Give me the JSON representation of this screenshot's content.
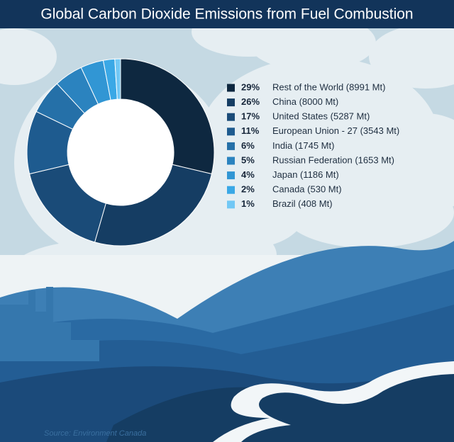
{
  "chart_data": {
    "type": "donut",
    "title": "Global Carbon Dioxide Emissions from Fuel Combustion",
    "categories": [
      "Rest of the World (8991 Mt)",
      "China (8000 Mt)",
      "United States (5287 Mt)",
      "European Union - 27 (3543 Mt)",
      "India (1745 Mt)",
      "Russian Federation (1653 Mt)",
      "Japan (1186 Mt)",
      "Canada (530 Mt)",
      "Brazil (408 Mt)"
    ],
    "values": [
      29,
      26,
      17,
      11,
      6,
      5,
      4,
      2,
      1
    ],
    "value_labels": [
      "29%",
      "26%",
      "17%",
      "11%",
      "6%",
      "5%",
      "4%",
      "2%",
      "1%"
    ],
    "colors": [
      "#0e2840",
      "#153d63",
      "#1a4b78",
      "#1e5b8f",
      "#2570a8",
      "#2b83bf",
      "#3196d4",
      "#3aa8e6",
      "#72c8f5"
    ],
    "source": "Source: Environment Canada"
  }
}
